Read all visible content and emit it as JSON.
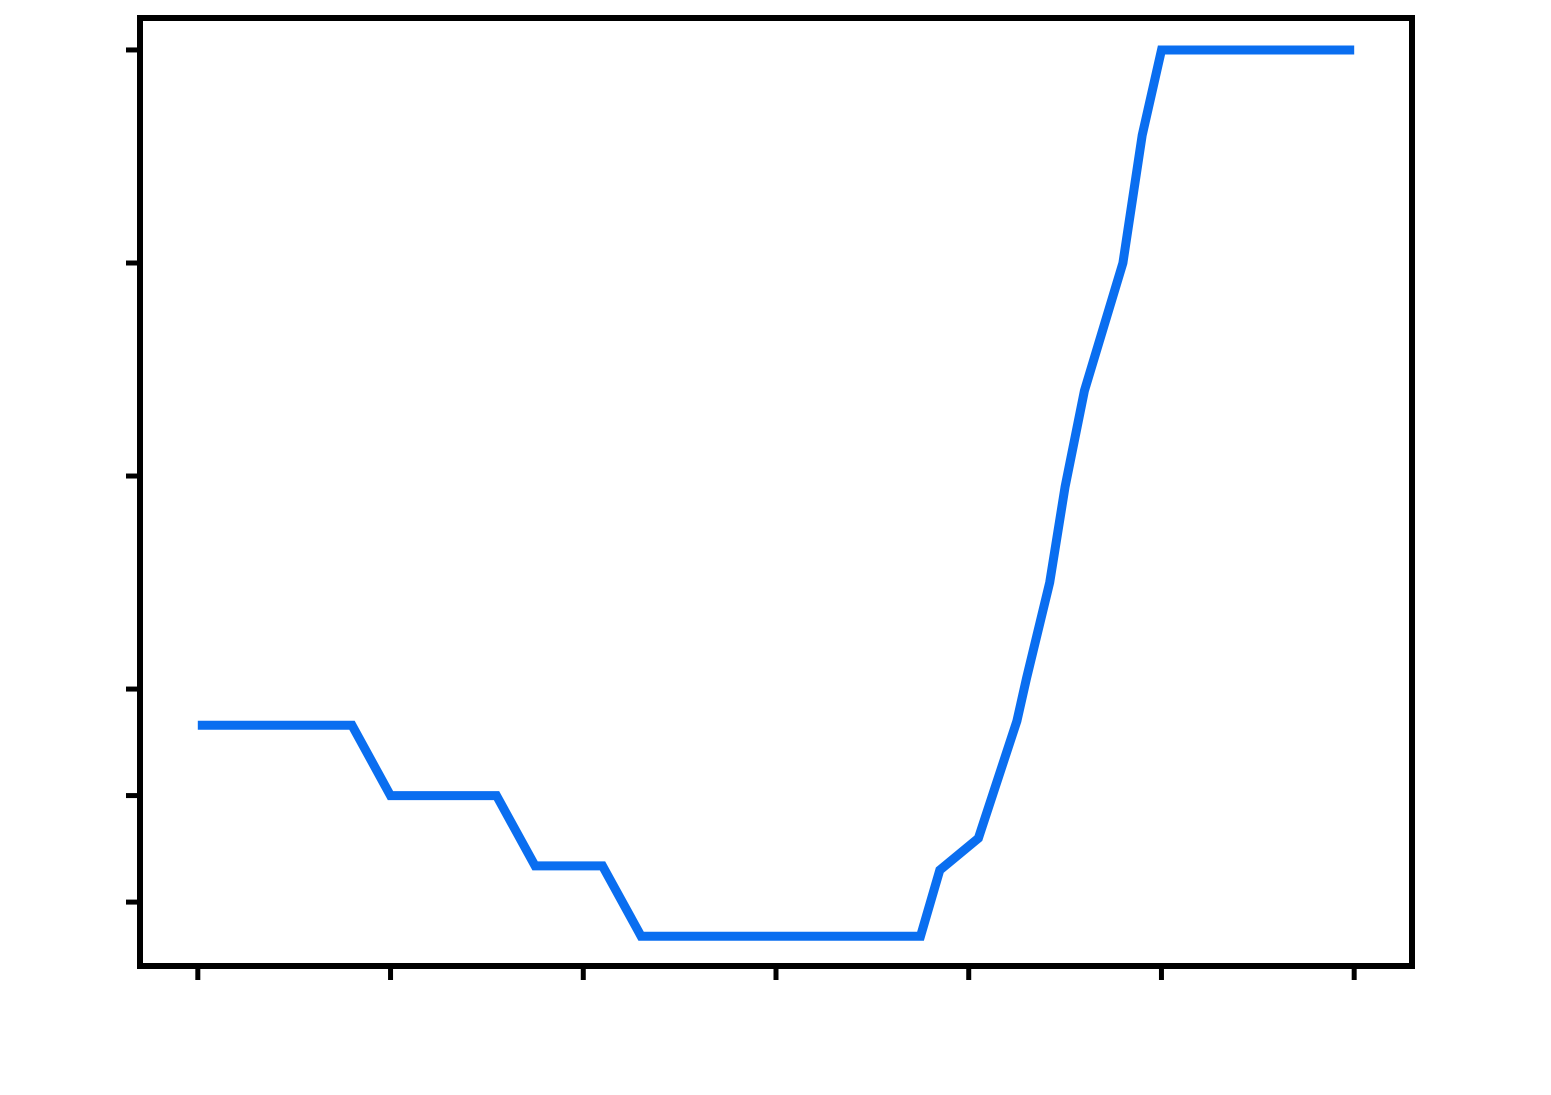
{
  "chart_data": {
    "type": "line",
    "title": "",
    "xlabel": "",
    "ylabel": "",
    "x_tick_labels": [
      "",
      "",
      "",
      "",
      "",
      "",
      ""
    ],
    "y_tick_labels": [
      "",
      "",
      "",
      "",
      "",
      ""
    ],
    "x": [
      0,
      0.6,
      0.8,
      1.0,
      1.35,
      1.55,
      1.75,
      2.1,
      2.3,
      2.5,
      3.0,
      3.5,
      3.75,
      3.85,
      4.05,
      4.25,
      4.3,
      4.42,
      4.5,
      4.6,
      4.8,
      4.9,
      5.0,
      6.0
    ],
    "series": [
      {
        "values": [
          -0.17,
          -0.17,
          -0.17,
          -0.5,
          -0.5,
          -0.5,
          -0.83,
          -0.83,
          -1.16,
          -1.16,
          -1.16,
          -1.16,
          -1.16,
          -0.85,
          -0.7,
          -0.15,
          0.05,
          0.5,
          0.95,
          1.4,
          2.0,
          2.6,
          3.0,
          3.0
        ],
        "color": "#0a6ef0"
      }
    ],
    "xlim": [
      -0.3,
      6.3
    ],
    "ylim": [
      -1.3,
      3.15
    ],
    "x_ticks": [
      0,
      1,
      2,
      3,
      4,
      5,
      6
    ],
    "y_ticks": [
      -1,
      -0.5,
      0,
      1,
      2,
      3
    ],
    "grid": false,
    "legend": "none"
  }
}
